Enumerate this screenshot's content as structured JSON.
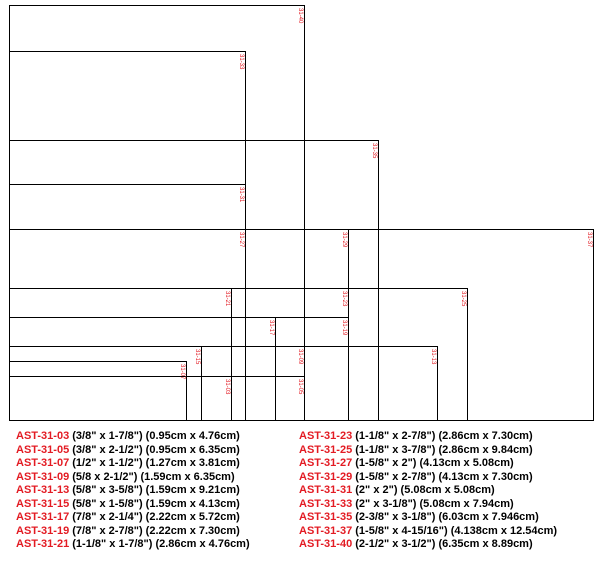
{
  "colors": {
    "label_red": "#e31b23",
    "line": "#000000",
    "background": "#ffffff"
  },
  "diagram_labels": [
    "31-40",
    "31-33",
    "31-35",
    "31-31",
    "31-27",
    "31-29",
    "31-37",
    "31-21",
    "31-23",
    "31-25",
    "31-17",
    "31-19",
    "31-09",
    "31-15",
    "31-13",
    "31-07",
    "31-03",
    "31-05"
  ],
  "legend": {
    "left": [
      {
        "code": "AST-31-03",
        "size": "(3/8\" x 1-7/8\") (0.95cm x 4.76cm)"
      },
      {
        "code": "AST-31-05",
        "size": "(3/8\" x 2-1/2\") (0.95cm x 6.35cm)"
      },
      {
        "code": "AST-31-07",
        "size": "(1/2\" x 1-1/2\") (1.27cm x 3.81cm)"
      },
      {
        "code": "AST-31-09",
        "size": "(5/8 x 2-1/2\") (1.59cm x 6.35cm)"
      },
      {
        "code": "AST-31-13",
        "size": "(5/8\" x 3-5/8\") (1.59cm x 9.21cm)"
      },
      {
        "code": "AST-31-15",
        "size": "(5/8\" x 1-5/8\") (1.59cm x 4.13cm)"
      },
      {
        "code": "AST-31-17",
        "size": "(7/8\" x 2-1/4\") (2.22cm x 5.72cm)"
      },
      {
        "code": "AST-31-19",
        "size": "(7/8\" x 2-7/8\") (2.22cm x 7.30cm)"
      },
      {
        "code": "AST-31-21",
        "size": "(1-1/8\" x 1-7/8\") (2.86cm x 4.76cm)"
      }
    ],
    "right": [
      {
        "code": "AST-31-23",
        "size": "(1-1/8\" x 2-7/8\") (2.86cm x 7.30cm)"
      },
      {
        "code": "AST-31-25",
        "size": "(1-1/8\" x 3-7/8\") (2.86cm x 9.84cm)"
      },
      {
        "code": "AST-31-27",
        "size": "(1-5/8\" x 2\") (4.13cm x 5.08cm)"
      },
      {
        "code": "AST-31-29",
        "size": "(1-5/8\" x 2-7/8\") (4.13cm x 7.30cm)"
      },
      {
        "code": "AST-31-31",
        "size": "(2\" x 2\") (5.08cm x 5.08cm)"
      },
      {
        "code": "AST-31-33",
        "size": "(2\" x 3-1/8\") (5.08cm x 7.94cm)"
      },
      {
        "code": "AST-31-35",
        "size": "(2-3/8\" x 3-1/8\") (6.03cm x 7.946cm)"
      },
      {
        "code": "AST-31-37",
        "size": "(1-5/8\" x 4-15/16\") (4.138cm x 12.54cm)"
      },
      {
        "code": "AST-31-40",
        "size": "(2-1/2\" x 3-1/2\") (6.35cm x 8.89cm)"
      }
    ]
  }
}
